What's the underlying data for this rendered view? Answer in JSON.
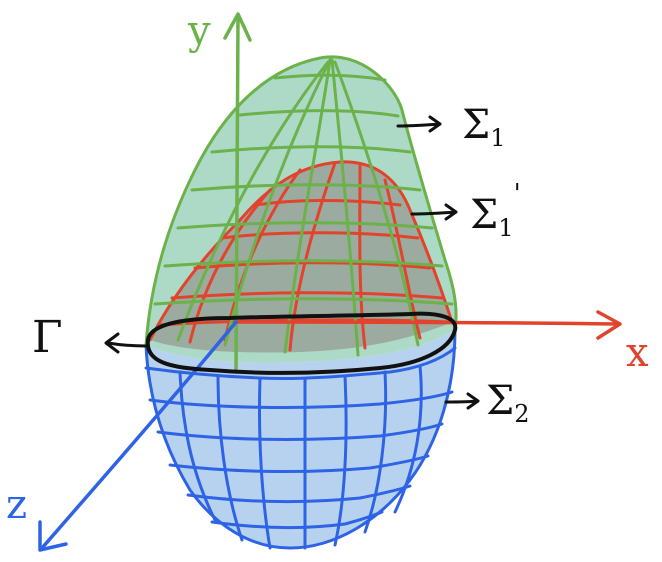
{
  "axes": {
    "x_label": "x",
    "y_label": "y",
    "z_label": "z"
  },
  "labels": {
    "sigma1": {
      "symbol": "Σ",
      "subscript": "1",
      "prime": ""
    },
    "sigma1_prime": {
      "symbol": "Σ",
      "subscript": "1",
      "prime": "'"
    },
    "sigma2": {
      "symbol": "Σ",
      "subscript": "2",
      "prime": ""
    },
    "gamma": "Γ"
  },
  "colors": {
    "green_surface": "#6bb24a",
    "green_fill": "#9fd3bd",
    "red_surface": "#e2432d",
    "red_fill": "#9aa59a",
    "blue_surface": "#2f63e6",
    "blue_fill": "#b6d2ee",
    "x_axis": "#e2432d",
    "y_axis": "#6bb24a",
    "z_axis": "#2f63e6",
    "boundary": "#111111"
  }
}
